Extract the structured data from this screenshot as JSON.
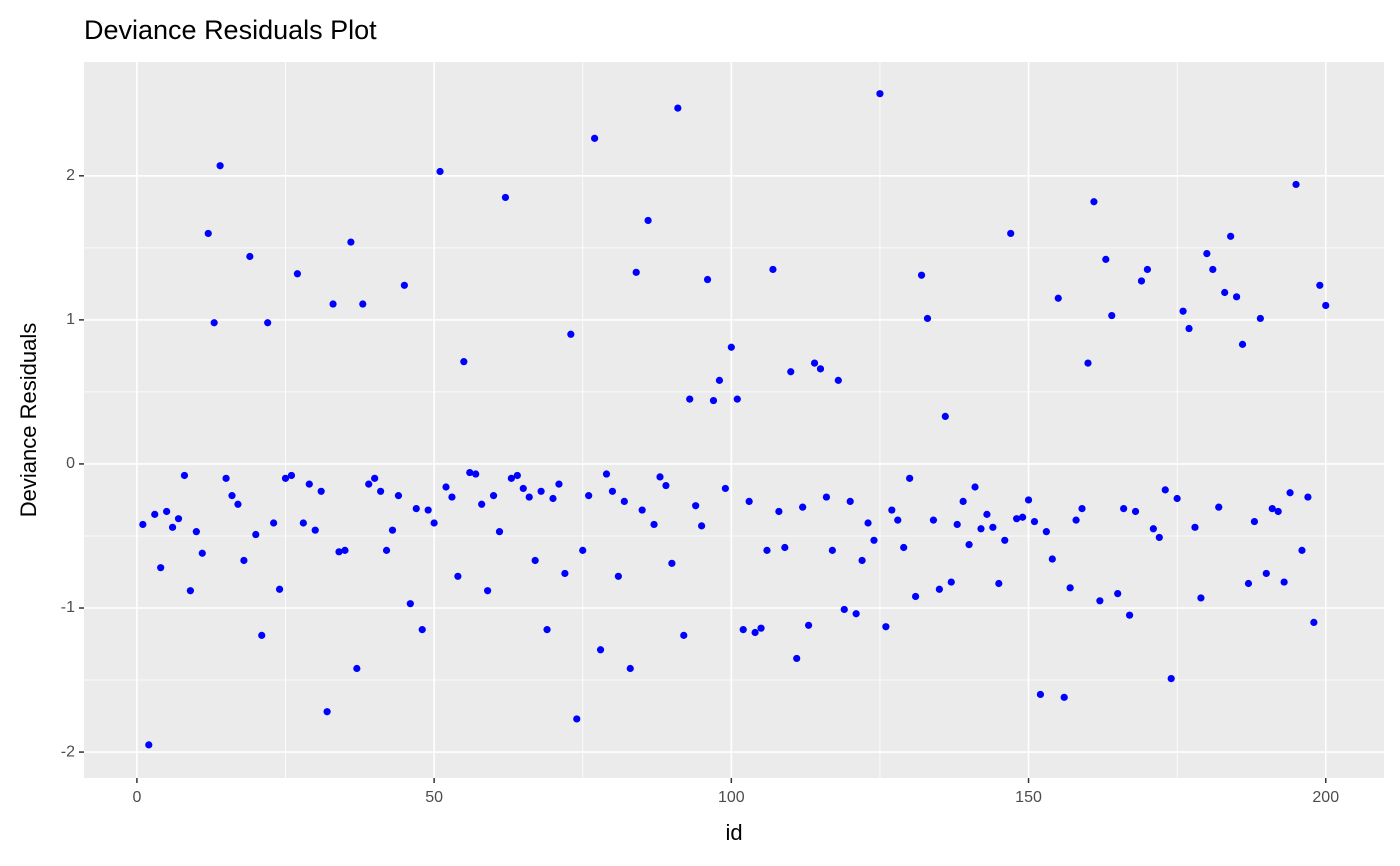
{
  "chart_data": {
    "type": "scatter",
    "title": "Deviance Residuals Plot",
    "x_label": "id",
    "y_label": "Deviance Residuals",
    "color": "#0000ff",
    "grid": true,
    "xlim": [
      -8.9,
      209.8
    ],
    "ylim": [
      -2.18,
      2.79
    ],
    "xticks": [
      0,
      50,
      100,
      150,
      200
    ],
    "yticks": [
      -2,
      -1,
      0,
      1,
      2
    ],
    "x": [
      1,
      2,
      3,
      4,
      5,
      6,
      7,
      8,
      9,
      10,
      11,
      12,
      13,
      14,
      15,
      16,
      17,
      18,
      19,
      20,
      21,
      22,
      23,
      24,
      25,
      26,
      27,
      28,
      29,
      30,
      31,
      32,
      33,
      34,
      35,
      36,
      37,
      38,
      39,
      40,
      41,
      42,
      43,
      44,
      45,
      46,
      47,
      48,
      49,
      50,
      51,
      52,
      53,
      54,
      55,
      56,
      57,
      58,
      59,
      60,
      61,
      62,
      63,
      64,
      65,
      66,
      67,
      68,
      69,
      70,
      71,
      72,
      73,
      74,
      75,
      76,
      77,
      78,
      79,
      80,
      81,
      82,
      83,
      84,
      85,
      86,
      87,
      88,
      89,
      90,
      91,
      92,
      93,
      94,
      95,
      96,
      97,
      98,
      99,
      100,
      101,
      102,
      103,
      104,
      105,
      106,
      107,
      108,
      109,
      110,
      111,
      112,
      113,
      114,
      115,
      116,
      117,
      118,
      119,
      120,
      121,
      122,
      123,
      124,
      125,
      126,
      127,
      128,
      129,
      130,
      131,
      132,
      133,
      134,
      135,
      136,
      137,
      138,
      139,
      140,
      141,
      142,
      143,
      144,
      145,
      146,
      147,
      148,
      149,
      150,
      151,
      152,
      153,
      154,
      155,
      156,
      157,
      158,
      159,
      160,
      161,
      162,
      163,
      164,
      165,
      166,
      167,
      168,
      169,
      170,
      171,
      172,
      173,
      174,
      175,
      176,
      177,
      178,
      179,
      180,
      181,
      182,
      183,
      184,
      185,
      186,
      187,
      188,
      189,
      190,
      191,
      192,
      193,
      194,
      195,
      196,
      197,
      198,
      199,
      200
    ],
    "values": [
      -0.42,
      -1.95,
      -0.35,
      -0.72,
      -0.33,
      -0.44,
      -0.38,
      -0.08,
      -0.88,
      -0.47,
      -0.62,
      1.6,
      0.98,
      2.07,
      -0.1,
      -0.22,
      -0.28,
      -0.67,
      1.44,
      -0.49,
      -1.19,
      0.98,
      -0.41,
      -0.87,
      -0.1,
      -0.08,
      1.32,
      -0.41,
      -0.14,
      -0.46,
      -0.19,
      -1.72,
      1.11,
      -0.61,
      -0.6,
      1.54,
      -1.42,
      1.11,
      -0.14,
      -0.1,
      -0.19,
      -0.6,
      -0.46,
      -0.22,
      1.24,
      -0.97,
      -0.31,
      -1.15,
      -0.32,
      -0.41,
      2.03,
      -0.16,
      -0.23,
      -0.78,
      0.71,
      -0.06,
      -0.07,
      -0.28,
      -0.88,
      -0.22,
      -0.47,
      1.85,
      -0.1,
      -0.08,
      -0.17,
      -0.23,
      -0.67,
      -0.19,
      -1.15,
      -0.24,
      -0.14,
      -0.76,
      0.9,
      -1.77,
      -0.6,
      -0.22,
      2.26,
      -1.29,
      -0.07,
      -0.19,
      -0.78,
      -0.26,
      -1.42,
      1.33,
      -0.32,
      1.69,
      -0.42,
      -0.09,
      -0.15,
      -0.69,
      2.47,
      -1.19,
      0.45,
      -0.29,
      -0.43,
      1.28,
      0.44,
      0.58,
      -0.17,
      0.81,
      0.45,
      -1.15,
      -0.26,
      -1.17,
      -1.14,
      -0.6,
      1.35,
      -0.33,
      -0.58,
      0.64,
      -1.35,
      -0.3,
      -1.12,
      0.7,
      0.66,
      -0.23,
      -0.6,
      0.58,
      -1.01,
      -0.26,
      -1.04,
      -0.67,
      -0.41,
      -0.53,
      2.57,
      -1.13,
      -0.32,
      -0.39,
      -0.58,
      -0.1,
      -0.92,
      1.31,
      1.01,
      -0.39,
      -0.87,
      0.33,
      -0.82,
      -0.42,
      -0.26,
      -0.56,
      -0.16,
      -0.45,
      -0.35,
      -0.44,
      -0.83,
      -0.53,
      1.6,
      -0.38,
      -0.37,
      -0.25,
      -0.4,
      -1.6,
      -0.47,
      -0.66,
      1.15,
      -1.62,
      -0.86,
      -0.39,
      -0.31,
      0.7,
      1.82,
      -0.95,
      1.42,
      1.03,
      -0.9,
      -0.31,
      -1.05,
      -0.33,
      1.27,
      1.35,
      -0.45,
      -0.51,
      -0.18,
      -1.49,
      -0.24,
      1.06,
      0.94,
      -0.44,
      -0.93,
      1.46,
      1.35,
      -0.3,
      1.19,
      1.58,
      1.16,
      0.83,
      -0.83,
      -0.4,
      1.01,
      -0.76,
      -0.31,
      -0.33,
      -0.82,
      -0.2,
      1.94,
      -0.6,
      -0.23,
      -1.1,
      1.24,
      1.1
    ]
  }
}
